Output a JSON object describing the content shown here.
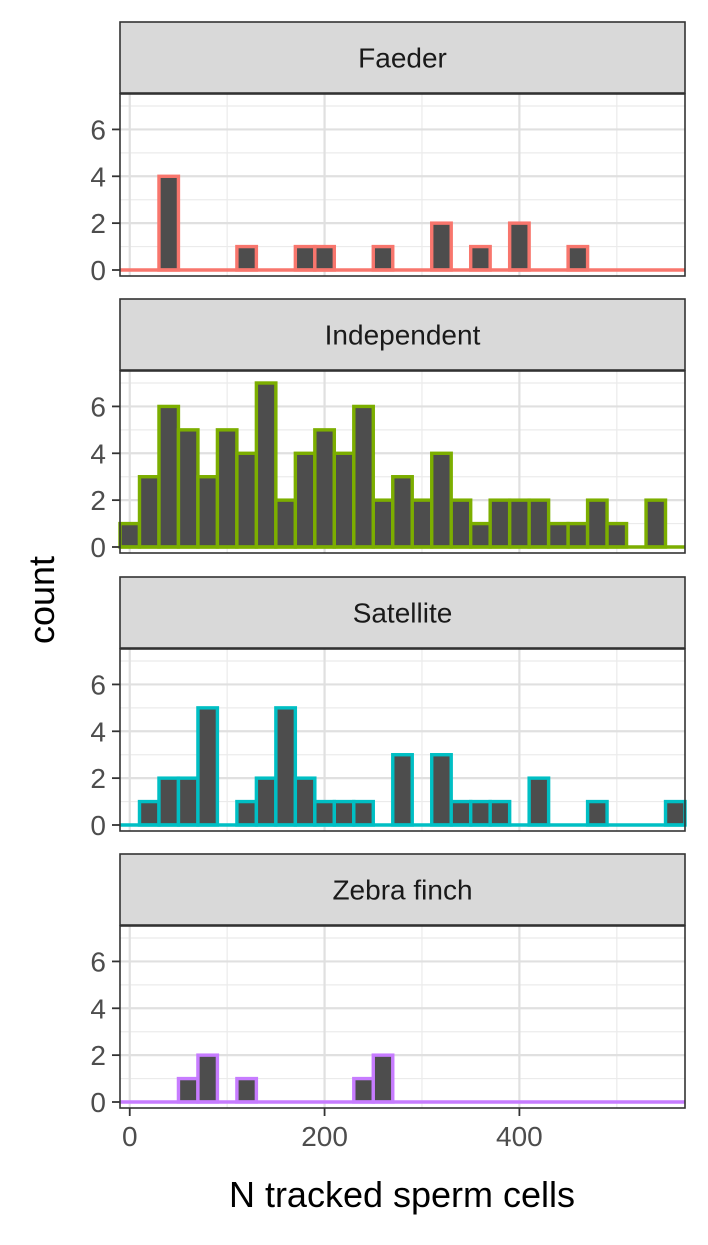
{
  "chart_data": {
    "type": "bar",
    "layout": "facet-wrap, 4 panels stacked vertically, shared x axis",
    "xlabel": "N tracked sperm cells",
    "ylabel": "count",
    "xlim": [
      -10,
      570
    ],
    "ylim": [
      0,
      7
    ],
    "x_ticks": [
      0,
      200,
      400
    ],
    "y_ticks": [
      0,
      2,
      4,
      6
    ],
    "bin_width": 20,
    "bin_fill": "#4d4d4d",
    "grid": true,
    "panels": [
      {
        "label": "Faeder",
        "color": "#f8766d",
        "bins": [
          [
            0,
            0
          ],
          [
            20,
            0
          ],
          [
            40,
            4
          ],
          [
            60,
            0
          ],
          [
            80,
            0
          ],
          [
            100,
            0
          ],
          [
            120,
            1
          ],
          [
            140,
            0
          ],
          [
            160,
            0
          ],
          [
            180,
            1
          ],
          [
            200,
            1
          ],
          [
            220,
            0
          ],
          [
            240,
            0
          ],
          [
            260,
            1
          ],
          [
            280,
            0
          ],
          [
            300,
            0
          ],
          [
            320,
            2
          ],
          [
            340,
            0
          ],
          [
            360,
            1
          ],
          [
            380,
            0
          ],
          [
            400,
            2
          ],
          [
            420,
            0
          ],
          [
            440,
            0
          ],
          [
            460,
            1
          ],
          [
            480,
            0
          ],
          [
            500,
            0
          ],
          [
            520,
            0
          ],
          [
            540,
            0
          ],
          [
            560,
            0
          ]
        ]
      },
      {
        "label": "Independent",
        "color": "#7cae00",
        "bins": [
          [
            0,
            1
          ],
          [
            20,
            3
          ],
          [
            40,
            6
          ],
          [
            60,
            5
          ],
          [
            80,
            3
          ],
          [
            100,
            5
          ],
          [
            120,
            4
          ],
          [
            140,
            7
          ],
          [
            160,
            2
          ],
          [
            180,
            4
          ],
          [
            200,
            5
          ],
          [
            220,
            4
          ],
          [
            240,
            6
          ],
          [
            260,
            2
          ],
          [
            280,
            3
          ],
          [
            300,
            2
          ],
          [
            320,
            4
          ],
          [
            340,
            2
          ],
          [
            360,
            1
          ],
          [
            380,
            2
          ],
          [
            400,
            2
          ],
          [
            420,
            2
          ],
          [
            440,
            1
          ],
          [
            460,
            1
          ],
          [
            480,
            2
          ],
          [
            500,
            1
          ],
          [
            520,
            0
          ],
          [
            540,
            2
          ],
          [
            560,
            0
          ]
        ]
      },
      {
        "label": "Satellite",
        "color": "#00bfc4",
        "bins": [
          [
            0,
            0
          ],
          [
            20,
            1
          ],
          [
            40,
            2
          ],
          [
            60,
            2
          ],
          [
            80,
            5
          ],
          [
            100,
            0
          ],
          [
            120,
            1
          ],
          [
            140,
            2
          ],
          [
            160,
            5
          ],
          [
            180,
            2
          ],
          [
            200,
            1
          ],
          [
            220,
            1
          ],
          [
            240,
            1
          ],
          [
            260,
            0
          ],
          [
            280,
            3
          ],
          [
            300,
            0
          ],
          [
            320,
            3
          ],
          [
            340,
            1
          ],
          [
            360,
            1
          ],
          [
            380,
            1
          ],
          [
            400,
            0
          ],
          [
            420,
            2
          ],
          [
            440,
            0
          ],
          [
            460,
            0
          ],
          [
            480,
            1
          ],
          [
            500,
            0
          ],
          [
            520,
            0
          ],
          [
            540,
            0
          ],
          [
            560,
            1
          ]
        ]
      },
      {
        "label": "Zebra finch",
        "color": "#c77cff",
        "bins": [
          [
            0,
            0
          ],
          [
            20,
            0
          ],
          [
            40,
            0
          ],
          [
            60,
            1
          ],
          [
            80,
            2
          ],
          [
            100,
            0
          ],
          [
            120,
            1
          ],
          [
            140,
            0
          ],
          [
            160,
            0
          ],
          [
            180,
            0
          ],
          [
            200,
            0
          ],
          [
            220,
            0
          ],
          [
            240,
            1
          ],
          [
            260,
            2
          ],
          [
            280,
            0
          ],
          [
            300,
            0
          ],
          [
            320,
            0
          ],
          [
            340,
            0
          ],
          [
            360,
            0
          ],
          [
            380,
            0
          ],
          [
            400,
            0
          ],
          [
            420,
            0
          ],
          [
            440,
            0
          ],
          [
            460,
            0
          ],
          [
            480,
            0
          ],
          [
            500,
            0
          ],
          [
            520,
            0
          ],
          [
            540,
            0
          ],
          [
            560,
            0
          ]
        ]
      }
    ]
  }
}
